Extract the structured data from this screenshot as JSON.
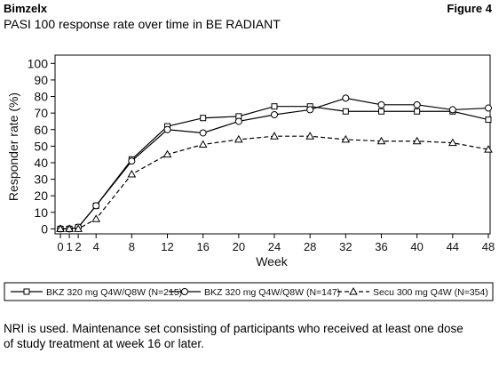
{
  "header": {
    "brand": "Bimzelx",
    "figure": "Figure 4"
  },
  "footnote": [
    "NRI is used. Maintenance set consisting of participants who received at least one dose",
    "of study treatment at week 16 or later."
  ],
  "chart_data": {
    "type": "line",
    "title": "PASI 100 response rate over time in BE RADIANT",
    "x_label": "Week",
    "y_label": "Responder rate (%)",
    "x": [
      0,
      1,
      2,
      4,
      8,
      12,
      16,
      20,
      24,
      28,
      32,
      36,
      40,
      44,
      48
    ],
    "xlim": [
      -0.6,
      48.2
    ],
    "xticks": [
      0,
      1,
      2,
      4,
      8,
      12,
      16,
      20,
      24,
      28,
      32,
      36,
      40,
      44,
      48
    ],
    "ylim": [
      -3,
      105
    ],
    "yticks": [
      0,
      10,
      20,
      30,
      40,
      50,
      60,
      70,
      80,
      90,
      100
    ],
    "series": [
      {
        "name": "BKZ 320 mg Q4W/Q8W (N=215)",
        "color": "#000000",
        "marker": "square",
        "line_style": "solid",
        "values": [
          0,
          0,
          1,
          14,
          42,
          62,
          67,
          68,
          74,
          74,
          71,
          71,
          71,
          71,
          66
        ]
      },
      {
        "name": "BKZ 320 mg Q4W/Q8W (N=147)",
        "color": "#000000",
        "marker": "circle",
        "line_style": "solid",
        "values": [
          0,
          0,
          1,
          14,
          41,
          60,
          58,
          65,
          69,
          72,
          79,
          75,
          75,
          72,
          73
        ]
      },
      {
        "name": "Secu 300 mg Q4W (N=354)",
        "color": "#000000",
        "marker": "triangle",
        "line_style": "dashed",
        "values": [
          0,
          0,
          0,
          6,
          33,
          45,
          51,
          54,
          56,
          56,
          54,
          53,
          53,
          52,
          48
        ]
      }
    ]
  }
}
